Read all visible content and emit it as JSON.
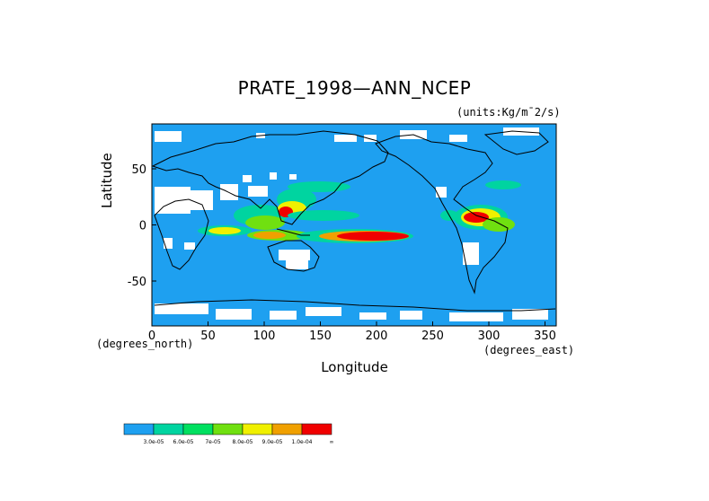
{
  "title": "PRATE_1998—ANN_NCEP",
  "units": "(units:Kg/m¯2/s)",
  "ylabel": "Latitude",
  "xlabel": "Longitude",
  "x_unit_left": "(degrees_north)",
  "x_unit_right": "(degrees_east)",
  "x_ticks": [
    "0",
    "50",
    "100",
    "150",
    "200",
    "250",
    "300",
    "350"
  ],
  "y_ticks": [
    "50",
    "0",
    "-50"
  ],
  "colors": {
    "ocean_base": "#1ea0f0",
    "missing": "#ffffff",
    "coast": "#000000"
  },
  "legend": {
    "items": [
      {
        "color": "#1ea0f0",
        "label": "3.0e-05"
      },
      {
        "color": "#00d4a0",
        "label": "6.0e-05"
      },
      {
        "color": "#00e060",
        "label": "7e-05"
      },
      {
        "color": "#70e010",
        "label": "8.0e-05"
      },
      {
        "color": "#f0f000",
        "label": "9.0e-05"
      },
      {
        "color": "#f0a000",
        "label": "1.0e-04"
      },
      {
        "color": "#f00000",
        "label": "∞"
      }
    ]
  },
  "map": {
    "projection": "lat-lon",
    "lon_range": [
      0,
      360
    ],
    "lat_range": [
      -90,
      90
    ],
    "lon_tick_values": [
      0,
      50,
      100,
      150,
      200,
      250,
      300,
      350
    ],
    "lat_tick_values": [
      50,
      0,
      -50
    ]
  }
}
